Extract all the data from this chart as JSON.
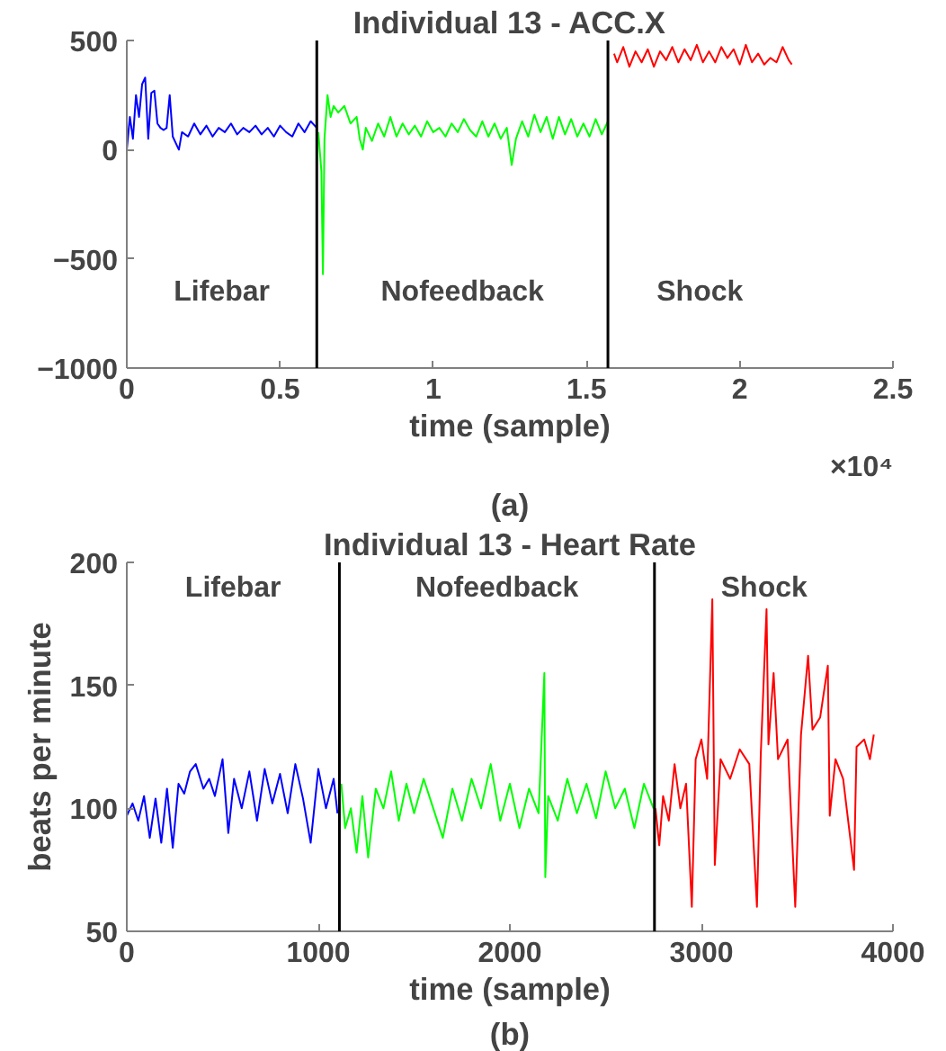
{
  "chart_data": [
    {
      "type": "line",
      "title": "Individual 13 - ACC.X",
      "xlabel": "time (sample)",
      "xlim": [
        0,
        2.5
      ],
      "ylim": [
        -1000,
        500
      ],
      "xticks": [
        0,
        0.5,
        1,
        1.5,
        2,
        2.5
      ],
      "yticks": [
        -1000,
        -500,
        0,
        500
      ],
      "grid": false,
      "ref_lines": [
        {
          "axis": "x",
          "value": 0.62,
          "color": "#000000"
        },
        {
          "axis": "x",
          "value": 1.57,
          "color": "#000000"
        }
      ],
      "annotations": [
        "Lifebar",
        "Nofeedback",
        "Shock",
        "×10⁴",
        "(a)"
      ],
      "series": [
        {
          "color": "#0000ff",
          "x": [
            0,
            0.01,
            0.02,
            0.03,
            0.04,
            0.05,
            0.06,
            0.07,
            0.08,
            0.09,
            0.1,
            0.11,
            0.12,
            0.13,
            0.14,
            0.15,
            0.16,
            0.17,
            0.18,
            0.2,
            0.22,
            0.24,
            0.26,
            0.28,
            0.3,
            0.32,
            0.34,
            0.36,
            0.38,
            0.4,
            0.42,
            0.44,
            0.46,
            0.48,
            0.5,
            0.52,
            0.54,
            0.56,
            0.58,
            0.6,
            0.62
          ],
          "values": [
            0,
            150,
            50,
            250,
            150,
            300,
            330,
            50,
            260,
            270,
            120,
            100,
            90,
            100,
            250,
            60,
            30,
            0,
            80,
            60,
            120,
            70,
            110,
            60,
            100,
            80,
            120,
            70,
            100,
            80,
            110,
            70,
            100,
            60,
            110,
            80,
            60,
            120,
            80,
            130,
            100
          ]
        },
        {
          "color": "#00ff00",
          "x": [
            0.625,
            0.635,
            0.64,
            0.645,
            0.655,
            0.665,
            0.675,
            0.69,
            0.71,
            0.73,
            0.75,
            0.76,
            0.77,
            0.78,
            0.8,
            0.82,
            0.84,
            0.86,
            0.88,
            0.9,
            0.92,
            0.94,
            0.96,
            0.98,
            1.0,
            1.02,
            1.04,
            1.06,
            1.08,
            1.1,
            1.12,
            1.14,
            1.16,
            1.18,
            1.2,
            1.22,
            1.24,
            1.256,
            1.27,
            1.29,
            1.31,
            1.33,
            1.35,
            1.37,
            1.39,
            1.41,
            1.43,
            1.45,
            1.47,
            1.49,
            1.51,
            1.53,
            1.55,
            1.57
          ],
          "values": [
            80,
            -100,
            -570,
            50,
            250,
            150,
            200,
            170,
            200,
            120,
            150,
            50,
            0,
            100,
            40,
            120,
            60,
            150,
            60,
            120,
            70,
            110,
            60,
            130,
            80,
            100,
            60,
            120,
            80,
            140,
            90,
            60,
            130,
            60,
            120,
            50,
            100,
            -70,
            50,
            130,
            60,
            160,
            80,
            150,
            50,
            150,
            70,
            140,
            60,
            120,
            60,
            140,
            70,
            130
          ]
        },
        {
          "color": "#ff0000",
          "x": [
            1.59,
            1.6,
            1.62,
            1.64,
            1.66,
            1.68,
            1.7,
            1.72,
            1.74,
            1.76,
            1.78,
            1.8,
            1.82,
            1.84,
            1.86,
            1.88,
            1.9,
            1.92,
            1.94,
            1.96,
            1.98,
            2.0,
            2.02,
            2.04,
            2.06,
            2.08,
            2.1,
            2.12,
            2.14,
            2.16,
            2.17
          ],
          "values": [
            440,
            400,
            470,
            380,
            450,
            400,
            460,
            380,
            450,
            410,
            470,
            400,
            460,
            410,
            480,
            400,
            450,
            400,
            470,
            420,
            460,
            390,
            480,
            400,
            440,
            390,
            420,
            400,
            470,
            410,
            390
          ]
        }
      ]
    },
    {
      "type": "line",
      "title": "Individual 13 - Heart Rate",
      "xlabel": "time (sample)",
      "ylabel": "beats per minute",
      "xlim": [
        0,
        4000
      ],
      "ylim": [
        50,
        200
      ],
      "xticks": [
        0,
        1000,
        2000,
        3000,
        4000
      ],
      "yticks": [
        50,
        100,
        150,
        200
      ],
      "grid": false,
      "ref_lines": [
        {
          "axis": "x",
          "value": 1110,
          "color": "#000000"
        },
        {
          "axis": "x",
          "value": 2755,
          "color": "#000000"
        }
      ],
      "annotations": [
        "Lifebar",
        "Nofeedback",
        "Shock",
        "(b)"
      ],
      "series": [
        {
          "color": "#0000ff",
          "x": [
            0,
            30,
            60,
            90,
            120,
            150,
            180,
            210,
            240,
            270,
            300,
            330,
            360,
            400,
            430,
            460,
            500,
            530,
            560,
            600,
            640,
            680,
            720,
            760,
            800,
            840,
            880,
            920,
            960,
            1000,
            1040,
            1080,
            1100
          ],
          "values": [
            97,
            102,
            95,
            105,
            88,
            104,
            86,
            108,
            84,
            110,
            106,
            115,
            118,
            108,
            112,
            105,
            120,
            90,
            112,
            100,
            115,
            95,
            116,
            102,
            114,
            98,
            118,
            104,
            86,
            116,
            100,
            112,
            98
          ]
        },
        {
          "color": "#00ff00",
          "x": [
            1120,
            1140,
            1170,
            1200,
            1230,
            1260,
            1300,
            1340,
            1380,
            1420,
            1460,
            1500,
            1550,
            1600,
            1650,
            1700,
            1750,
            1800,
            1850,
            1900,
            1950,
            2000,
            2050,
            2100,
            2150,
            2180,
            2185,
            2200,
            2250,
            2300,
            2350,
            2400,
            2450,
            2500,
            2550,
            2600,
            2650,
            2700,
            2750
          ],
          "values": [
            110,
            92,
            100,
            82,
            105,
            80,
            108,
            100,
            115,
            95,
            110,
            98,
            112,
            100,
            88,
            108,
            95,
            112,
            100,
            118,
            95,
            110,
            92,
            108,
            98,
            155,
            72,
            105,
            95,
            112,
            98,
            110,
            96,
            115,
            100,
            108,
            92,
            110,
            100
          ]
        },
        {
          "color": "#ff0000",
          "x": [
            2760,
            2780,
            2800,
            2830,
            2860,
            2890,
            2920,
            2950,
            2970,
            3000,
            3030,
            3057,
            3070,
            3100,
            3150,
            3200,
            3250,
            3290,
            3310,
            3340,
            3350,
            3377,
            3400,
            3450,
            3490,
            3520,
            3557,
            3580,
            3620,
            3660,
            3670,
            3700,
            3740,
            3797,
            3810,
            3850,
            3880,
            3900
          ],
          "values": [
            100,
            85,
            105,
            95,
            118,
            100,
            110,
            60,
            120,
            128,
            112,
            185,
            77,
            120,
            112,
            124,
            118,
            60,
            122,
            181,
            126,
            155,
            120,
            128,
            60,
            130,
            162,
            132,
            137,
            158,
            97,
            120,
            112,
            75,
            125,
            128,
            120,
            130
          ]
        }
      ]
    }
  ]
}
